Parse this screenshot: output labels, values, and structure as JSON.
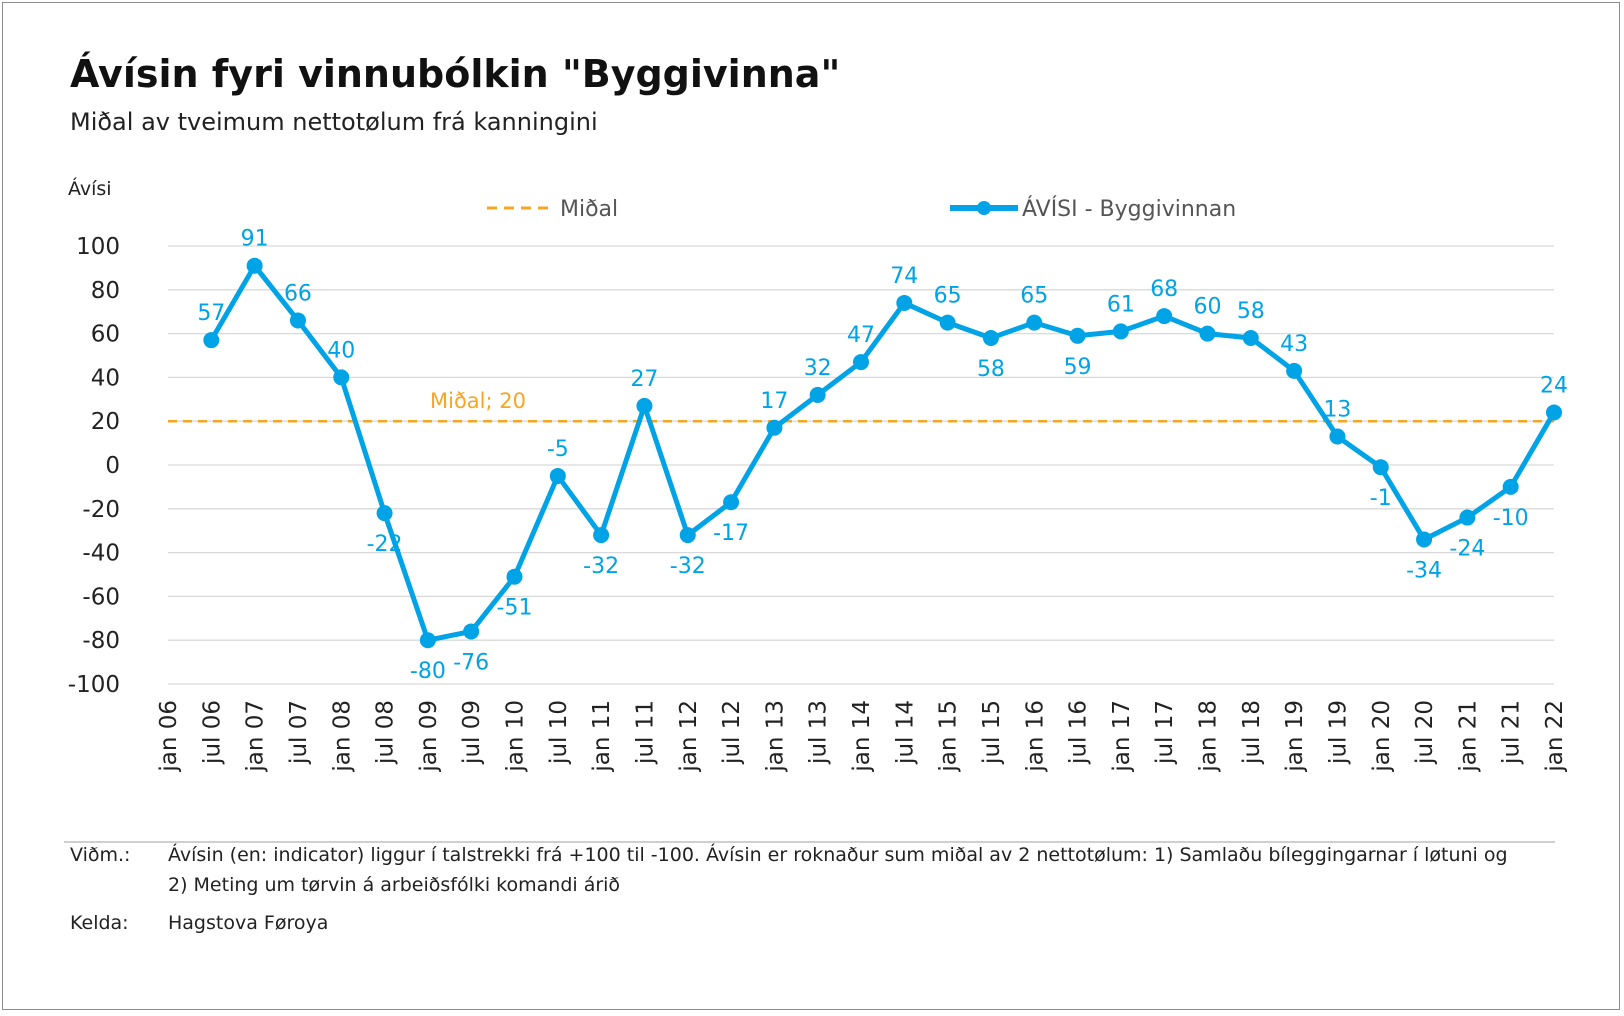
{
  "title": "Ávísin fyri vinnubólkin \"Byggivinna\"",
  "subtitle": "Miðal av tveimum nettotølum frá kanningini",
  "notes": {
    "note_label": "Viðm.:",
    "note_text": "Ávísin (en: indicator) liggur í talstrekki frá +100 til -100. Ávísin er roknaður sum miðal av 2 nettotølum: 1) Samlaðu bíleggingarnar í løtuni og 2) Meting um tørvin á arbeiðsfólki komandi árið",
    "source_label": "Kelda:",
    "source_text": "Hagstova Føroya"
  },
  "chart_data": {
    "type": "line",
    "ylabel": "Ávísi",
    "xlabel": "",
    "ylim": [
      -100,
      100
    ],
    "yticks": [
      100,
      80,
      60,
      40,
      20,
      0,
      -20,
      -40,
      -60,
      -80,
      -100
    ],
    "categories": [
      "jan 06",
      "jul 06",
      "jan 07",
      "jul 07",
      "jan 08",
      "jul 08",
      "jan 09",
      "jul 09",
      "jan 10",
      "jul 10",
      "jan 11",
      "jul 11",
      "jan 12",
      "jul 12",
      "jan 13",
      "jul 13",
      "jan 14",
      "jul 14",
      "jan 15",
      "jul 15",
      "jan 16",
      "jul 16",
      "jan 17",
      "jul 17",
      "jan 18",
      "jul 18",
      "jan 19",
      "jul 19",
      "jan 20",
      "jul 20",
      "jan 21",
      "jul 21",
      "jan 22"
    ],
    "grid": true,
    "legend_position": "top",
    "series": [
      {
        "name": "ÁVÍSI - Byggivinnan",
        "color": "#00a3e6",
        "values": [
          null,
          57,
          91,
          66,
          40,
          -22,
          -80,
          -76,
          -51,
          -5,
          -32,
          27,
          -32,
          -17,
          17,
          32,
          47,
          74,
          65,
          58,
          65,
          59,
          61,
          68,
          60,
          58,
          43,
          13,
          -1,
          -34,
          -24,
          -10,
          24
        ],
        "labels": [
          null,
          "57",
          "91",
          "66",
          "40",
          "-22",
          "-80",
          "-76",
          "-51",
          "-5",
          "-32",
          "27",
          "-32",
          "-17",
          "17",
          "32",
          "47",
          "74",
          "65",
          "58",
          "65",
          "59",
          "61",
          "68",
          "60",
          "58",
          "43",
          "13",
          "-1",
          "-34",
          "-24",
          "-10",
          "24"
        ]
      }
    ],
    "reference_line": {
      "name": "Miðal",
      "value": 20,
      "label": "Miðal; 20",
      "color": "#f5a623",
      "style": "dashed"
    }
  }
}
